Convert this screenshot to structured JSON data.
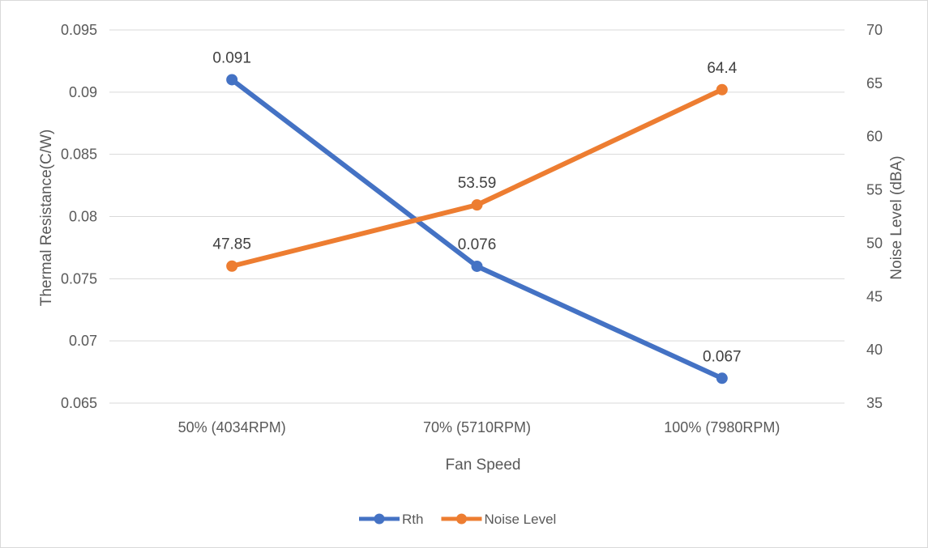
{
  "chart_data": {
    "type": "line",
    "categories": [
      "50% (4034RPM)",
      "70% (5710RPM)",
      "100% (7980RPM)"
    ],
    "xlabel": "Fan Speed",
    "y_left": {
      "label": "Thermal Resistance(C/W)",
      "min": 0.065,
      "max": 0.095,
      "step": 0.005,
      "ticks": [
        "0.065",
        "0.07",
        "0.075",
        "0.08",
        "0.085",
        "0.09",
        "0.095"
      ]
    },
    "y_right": {
      "label": "Noise Level (dBA)",
      "min": 35,
      "max": 70,
      "step": 5,
      "ticks": [
        "35",
        "40",
        "45",
        "50",
        "55",
        "60",
        "65",
        "70"
      ]
    },
    "series": [
      {
        "name": "Rth",
        "axis": "left",
        "color": "#4472c4",
        "values": [
          0.091,
          0.076,
          0.067
        ],
        "labels": [
          "0.091",
          "0.076",
          "0.067"
        ]
      },
      {
        "name": "Noise Level",
        "axis": "right",
        "color": "#ed7d31",
        "values": [
          47.85,
          53.59,
          64.4
        ],
        "labels": [
          "47.85",
          "53.59",
          "64.4"
        ]
      }
    ],
    "grid": true,
    "legend": "bottom"
  }
}
